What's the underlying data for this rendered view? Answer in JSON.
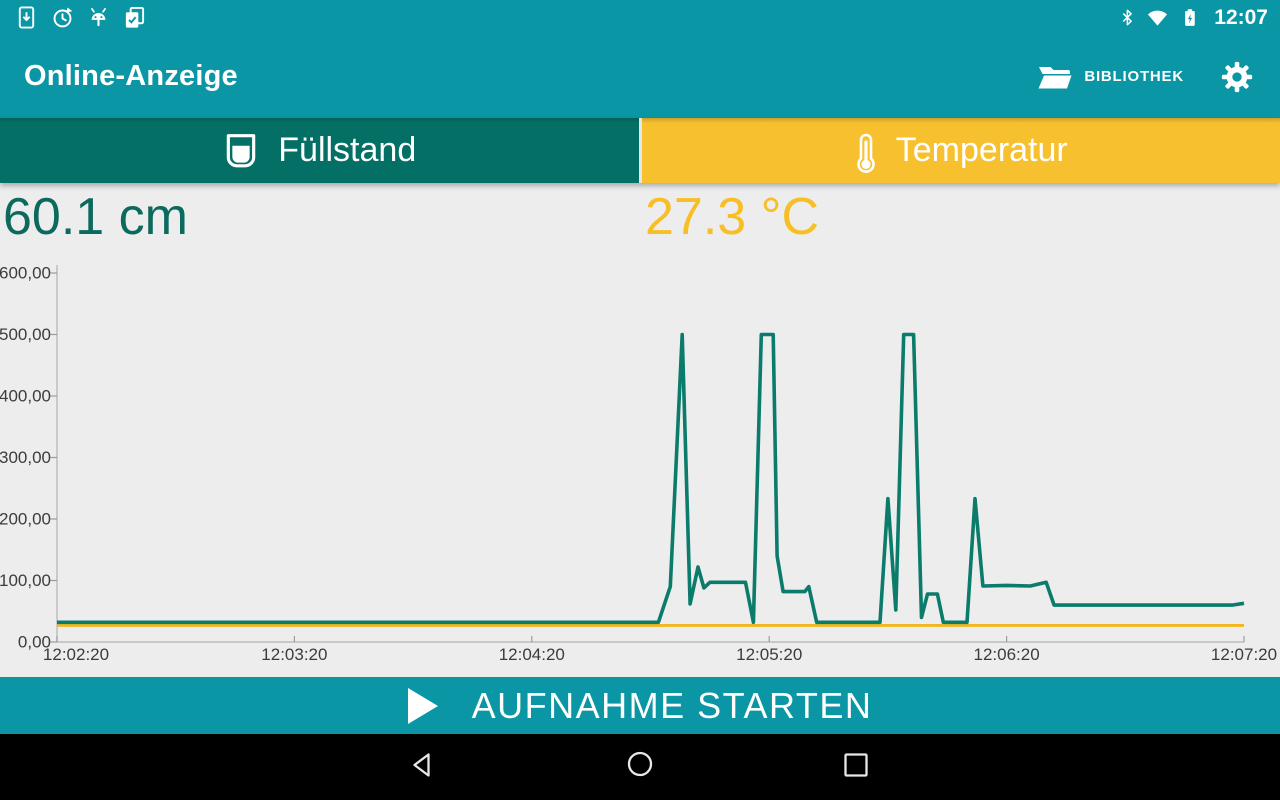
{
  "status_bar": {
    "time": "12:07",
    "left_icons": [
      "tablet-download-icon",
      "update-clock-icon",
      "android-robot-icon",
      "copy-check-icon"
    ],
    "right_icons": [
      "bluetooth-icon",
      "wifi-icon",
      "battery-charging-icon"
    ]
  },
  "app_bar": {
    "title": "Online-Anzeige",
    "library_label": "BIBLIOTHEK"
  },
  "tabs": {
    "fuellstand": {
      "label": "Füllstand",
      "value": "60.1 cm"
    },
    "temperatur": {
      "label": "Temperatur",
      "value": "27.3 °C"
    }
  },
  "record_button": {
    "label": "AUFNAHME STARTEN"
  },
  "colors": {
    "app_teal": "#0a96a5",
    "tab_green": "#047065",
    "tab_amber": "#f7c02e",
    "reading_green": "#0c695d",
    "reading_amber": "#f8be25",
    "line_green": "#0b7b6b",
    "line_yellow": "#f3b71d",
    "background": "#ededed"
  },
  "chart_data": {
    "type": "line",
    "grid": false,
    "x_axis": {
      "start_time": "12:02:20",
      "end_time": "12:07:20",
      "tick_labels": [
        "12:02:20",
        "12:03:20",
        "12:04:20",
        "12:05:20",
        "12:06:20",
        "12:07:20"
      ],
      "tick_seconds": [
        0,
        60,
        120,
        180,
        240,
        300
      ]
    },
    "y_axis": {
      "tick_labels": [
        "0,00",
        "100,00",
        "200,00",
        "300,00",
        "400,00",
        "500,00",
        "600,00"
      ],
      "tick_values": [
        0,
        100,
        200,
        300,
        400,
        500,
        600
      ],
      "ylim": [
        0,
        600
      ]
    },
    "series": [
      {
        "name": "Temperatur",
        "unit": "°C",
        "color": "#f3b71d",
        "points": [
          [
            0,
            27
          ],
          [
            300,
            27
          ]
        ]
      },
      {
        "name": "Füllstand",
        "unit": "cm",
        "color": "#0b7b6b",
        "points": [
          [
            0,
            32
          ],
          [
            152,
            32
          ],
          [
            155,
            90
          ],
          [
            158,
            500
          ],
          [
            160,
            62
          ],
          [
            162,
            122
          ],
          [
            163.5,
            88
          ],
          [
            165,
            97
          ],
          [
            174,
            97
          ],
          [
            176,
            32
          ],
          [
            178,
            500
          ],
          [
            181,
            500
          ],
          [
            182,
            140
          ],
          [
            183.5,
            82
          ],
          [
            189,
            82
          ],
          [
            190,
            90
          ],
          [
            192,
            32
          ],
          [
            208,
            32
          ],
          [
            210,
            233
          ],
          [
            212,
            52
          ],
          [
            214,
            500
          ],
          [
            216.5,
            500
          ],
          [
            218.5,
            40
          ],
          [
            220,
            78
          ],
          [
            222.5,
            78
          ],
          [
            224,
            32
          ],
          [
            230,
            32
          ],
          [
            232,
            233
          ],
          [
            234,
            91
          ],
          [
            240,
            92
          ],
          [
            246,
            91
          ],
          [
            250,
            97
          ],
          [
            252,
            60
          ],
          [
            297,
            60
          ],
          [
            300,
            63
          ]
        ]
      }
    ]
  }
}
